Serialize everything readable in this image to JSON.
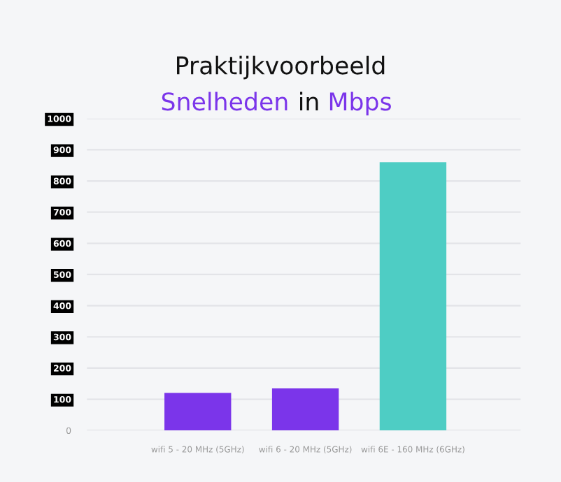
{
  "chart_data": {
    "type": "bar",
    "title": "Praktijkvoorbeeld",
    "subtitle": "Snelheden in Mbps",
    "categories": [
      "wifi 5 - 20 MHz (5GHz)",
      "wifi 6 - 20 MHz (5GHz)",
      "wifi 6E - 160 MHz (6GHz)"
    ],
    "values": [
      120,
      135,
      860
    ],
    "colors": [
      "#7b35ea",
      "#7b35ea",
      "#4ecdc4"
    ],
    "ylim": [
      0,
      1000
    ],
    "yticks": [
      0,
      100,
      200,
      300,
      400,
      500,
      600,
      700,
      800,
      900,
      1000
    ],
    "grid": "y"
  }
}
